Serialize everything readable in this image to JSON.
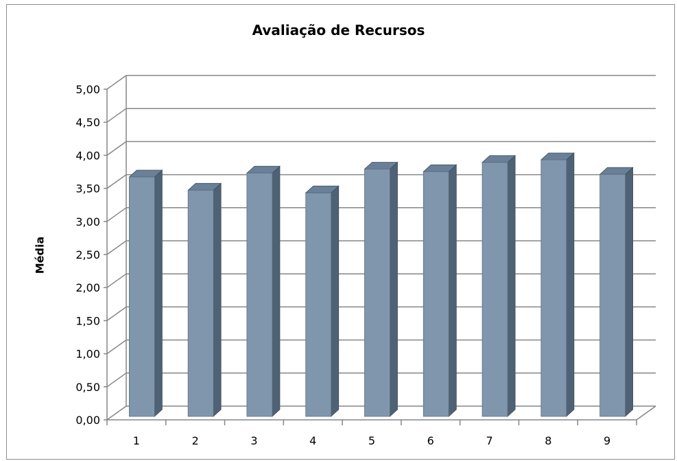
{
  "chart_data": {
    "type": "bar",
    "title": "Avaliação de Recursos",
    "xlabel": "",
    "ylabel": "Média",
    "categories": [
      "1",
      "2",
      "3",
      "4",
      "5",
      "6",
      "7",
      "8",
      "9"
    ],
    "values": [
      3.62,
      3.42,
      3.68,
      3.38,
      3.74,
      3.7,
      3.84,
      3.88,
      3.66
    ],
    "ylim": [
      0,
      5
    ],
    "yticks": [
      "0,00",
      "0,50",
      "1,00",
      "1,50",
      "2,00",
      "2,50",
      "3,00",
      "3,50",
      "4,00",
      "4,50",
      "5,00"
    ],
    "grid": true,
    "legend": "none",
    "style": "3d-column",
    "colors": {
      "bar_front": "#7f96ad",
      "bar_side": "#4f6275",
      "bar_top": "#6a8098",
      "gridline": "#868686"
    }
  }
}
